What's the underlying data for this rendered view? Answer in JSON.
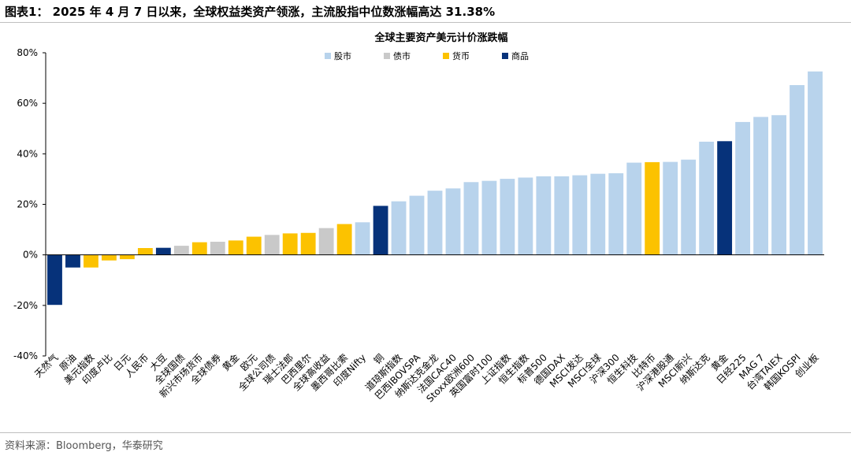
{
  "figure_title": "图表1： 2025 年 4 月 7 日以来，全球权益类资产领涨，主流股指中位数涨幅高达 31.38%",
  "source": "资料来源：Bloomberg，华泰研究",
  "colors": {
    "stock": "#b8d3ec",
    "bond": "#c9c9c9",
    "currency": "#fcc200",
    "commodity": "#06327a"
  },
  "chart_data": {
    "type": "bar",
    "title": "全球主要资产美元计价涨跌幅",
    "xlabel": "",
    "ylabel": "",
    "ylim": [
      -40,
      80
    ],
    "yticks": [
      -40,
      -20,
      0,
      20,
      40,
      60,
      80
    ],
    "ytick_labels": [
      "-40%",
      "-20%",
      "0%",
      "20%",
      "40%",
      "60%",
      "80%"
    ],
    "legend": [
      {
        "key": "stock",
        "label": "股市"
      },
      {
        "key": "bond",
        "label": "债市"
      },
      {
        "key": "currency",
        "label": "货币"
      },
      {
        "key": "commodity",
        "label": "商品"
      }
    ],
    "categories": [
      "天然气",
      "原油",
      "美元指数",
      "印度卢比",
      "日元",
      "人民币",
      "大豆",
      "全球国债",
      "新兴市场货币",
      "全球债券",
      "黄金",
      "欧元",
      "全球公司债",
      "瑞士法郎",
      "巴西里尔",
      "全球高收益",
      "墨西哥比索",
      "印度Nifty",
      "铜",
      "道琼斯指数",
      "巴西IBOVSPA",
      "纳斯达克金龙",
      "法国CAC40",
      "Stoxx欧洲600",
      "英国富时100",
      "上证指数",
      "恒生指数",
      "标普500",
      "德国DAX",
      "MSCI发达",
      "MSCI全球",
      "沪深300",
      "恒生科技",
      "比特币",
      "沪深港股通",
      "MSCI新兴",
      "纳斯达克",
      "黄金",
      "日经225",
      "MAG 7",
      "台湾TAIEX",
      "韩国KOSPI",
      "创业板"
    ],
    "values": [
      -19.8,
      -5.0,
      -5.0,
      -2.2,
      -1.7,
      2.7,
      2.8,
      3.6,
      5.0,
      5.2,
      5.7,
      7.2,
      7.9,
      8.5,
      8.7,
      10.6,
      12.2,
      12.9,
      19.4,
      21.2,
      23.4,
      25.4,
      26.3,
      28.8,
      29.3,
      30.1,
      30.6,
      31.1,
      31.1,
      31.5,
      32.1,
      32.3,
      36.5,
      36.7,
      36.8,
      37.7,
      44.8,
      45.0,
      52.6,
      54.6,
      55.3,
      67.2,
      72.6
    ],
    "asset_class": [
      "commodity",
      "commodity",
      "currency",
      "currency",
      "currency",
      "currency",
      "commodity",
      "bond",
      "currency",
      "bond",
      "currency",
      "currency",
      "bond",
      "currency",
      "currency",
      "bond",
      "currency",
      "stock",
      "commodity",
      "stock",
      "stock",
      "stock",
      "stock",
      "stock",
      "stock",
      "stock",
      "stock",
      "stock",
      "stock",
      "stock",
      "stock",
      "stock",
      "stock",
      "currency",
      "stock",
      "stock",
      "stock",
      "commodity",
      "stock",
      "stock",
      "stock",
      "stock",
      "stock"
    ]
  }
}
